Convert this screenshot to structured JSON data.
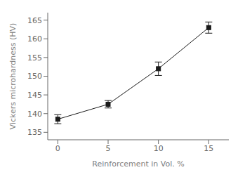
{
  "chart_data": {
    "type": "line",
    "x": [
      0,
      5,
      10,
      15
    ],
    "values": [
      138.5,
      142.5,
      152.0,
      163.0
    ],
    "yerr": [
      1.2,
      1.0,
      1.8,
      1.5
    ],
    "xlim": [
      -1.0,
      17.0
    ],
    "ylim": [
      133,
      167
    ],
    "xticks": [
      0,
      5,
      10,
      15
    ],
    "yticks": [
      135,
      140,
      145,
      150,
      155,
      160,
      165
    ],
    "xlabel": "Reinforcement in Vol. %",
    "ylabel": "Vickers microhardness (HV)",
    "color": "#1a1a1a",
    "marker": "square",
    "grid": false
  }
}
